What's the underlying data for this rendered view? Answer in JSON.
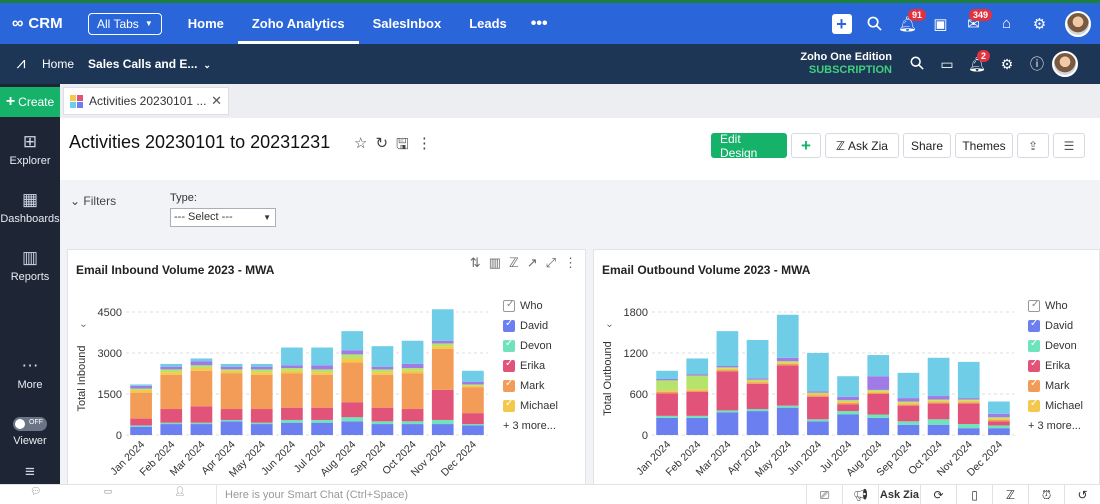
{
  "crm_bar": {
    "logo": "CRM",
    "all_tabs": "All Tabs",
    "tabs": [
      {
        "label": "Home",
        "active": false
      },
      {
        "label": "Zoho Analytics",
        "active": true
      },
      {
        "label": "SalesInbox",
        "active": false
      },
      {
        "label": "Leads",
        "active": false
      }
    ],
    "more": "•••",
    "notification_count": "91",
    "mail_count": "349"
  },
  "analytics_bar": {
    "home": "Home",
    "breadcrumb": "Sales Calls and E...",
    "edition": "Zoho One Edition",
    "subscription": "SUBSCRIPTION",
    "alert_count": "2"
  },
  "rail": {
    "create": "Create",
    "items": [
      "Explorer",
      "Dashboards",
      "Reports",
      "More",
      "Viewer"
    ],
    "toggle_state": "OFF"
  },
  "doc_tab": {
    "label": "Activities 20230101 ..."
  },
  "page": {
    "title": "Activities 20230101 to 20231231",
    "actions": {
      "edit_design": "Edit Design",
      "ask_zia": "Ask Zia",
      "share": "Share",
      "themes": "Themes"
    }
  },
  "filters": {
    "label": "Filters",
    "type_label": "Type:",
    "type_value": "--- Select ---"
  },
  "legend": {
    "who": "Who",
    "entries": [
      {
        "name": "David",
        "color": "#6b7ff0"
      },
      {
        "name": "Devon",
        "color": "#6fe3bb"
      },
      {
        "name": "Erika",
        "color": "#e2537a"
      },
      {
        "name": "Mark",
        "color": "#f29c58"
      },
      {
        "name": "Michael",
        "color": "#f2c94c"
      }
    ],
    "more": "+ 3 more..."
  },
  "segment_colors": [
    "#6b7ff0",
    "#6fe3bb",
    "#e2537a",
    "#f29c58",
    "#f2c94c",
    "#b6e36b",
    "#a07ae6",
    "#6fcde8"
  ],
  "chart_data": [
    {
      "type": "bar",
      "stacked": true,
      "title": "Email Inbound Volume 2023 - MWA",
      "xlabel": "",
      "ylabel": "Total Inbound",
      "ylim": [
        0,
        4500
      ],
      "yticks": [
        "0",
        "1500",
        "3000",
        "4500"
      ],
      "ytick_values": [
        0,
        1500,
        3000,
        4500
      ],
      "grid": true,
      "legend": "right",
      "categories": [
        "Jan 2024",
        "Feb 2024",
        "Mar 2024",
        "Apr 2024",
        "May 2024",
        "Jun 2024",
        "Jul 2024",
        "Aug 2024",
        "Sep 2024",
        "Oct 2024",
        "Nov 2024",
        "Dec 2024"
      ],
      "series": [
        {
          "name": "David",
          "values": [
            300,
            400,
            400,
            500,
            400,
            450,
            450,
            500,
            400,
            400,
            400,
            350
          ]
        },
        {
          "name": "Devon",
          "values": [
            50,
            50,
            50,
            50,
            50,
            100,
            100,
            150,
            100,
            100,
            150,
            50
          ]
        },
        {
          "name": "Erika",
          "values": [
            250,
            500,
            600,
            400,
            500,
            450,
            450,
            550,
            500,
            450,
            1100,
            400
          ]
        },
        {
          "name": "Mark",
          "values": [
            950,
            1250,
            1300,
            1300,
            1250,
            1250,
            1200,
            1450,
            1200,
            1300,
            1500,
            950
          ]
        },
        {
          "name": "Michael",
          "values": [
            100,
            100,
            100,
            100,
            100,
            100,
            100,
            150,
            100,
            100,
            100,
            50
          ]
        },
        {
          "name": "",
          "values": [
            50,
            100,
            100,
            50,
            100,
            100,
            100,
            150,
            100,
            100,
            100,
            50
          ]
        },
        {
          "name": "",
          "values": [
            100,
            100,
            150,
            100,
            100,
            100,
            150,
            150,
            100,
            150,
            100,
            100
          ]
        },
        {
          "name": "",
          "values": [
            50,
            100,
            100,
            100,
            100,
            650,
            650,
            700,
            750,
            850,
            1150,
            400
          ]
        }
      ]
    },
    {
      "type": "bar",
      "stacked": true,
      "title": "Email Outbound Volume 2023 - MWA",
      "xlabel": "",
      "ylabel": "Total Outbound",
      "ylim": [
        0,
        1800
      ],
      "yticks": [
        "0",
        "600",
        "1200",
        "1800"
      ],
      "ytick_values": [
        0,
        600,
        1200,
        1800
      ],
      "grid": true,
      "legend": "right",
      "categories": [
        "Jan 2024",
        "Feb 2024",
        "Mar 2024",
        "Apr 2024",
        "May 2024",
        "Jun 2024",
        "Jul 2024",
        "Aug 2024",
        "Sep 2024",
        "Oct 2024",
        "Nov 2024",
        "Dec 2024"
      ],
      "series": [
        {
          "name": "David",
          "values": [
            250,
            250,
            330,
            350,
            400,
            200,
            300,
            250,
            150,
            150,
            100,
            100
          ]
        },
        {
          "name": "Devon",
          "values": [
            30,
            30,
            30,
            30,
            30,
            30,
            50,
            50,
            50,
            80,
            60,
            40
          ]
        },
        {
          "name": "Erika",
          "values": [
            330,
            350,
            570,
            370,
            590,
            330,
            100,
            300,
            230,
            230,
            300,
            60
          ]
        },
        {
          "name": "Mark",
          "values": [
            20,
            20,
            20,
            20,
            20,
            20,
            20,
            20,
            20,
            20,
            20,
            20
          ]
        },
        {
          "name": "Michael",
          "values": [
            20,
            20,
            20,
            20,
            20,
            20,
            20,
            20,
            20,
            20,
            20,
            20
          ]
        },
        {
          "name": "",
          "values": [
            150,
            200,
            20,
            20,
            20,
            20,
            20,
            20,
            20,
            20,
            20,
            20
          ]
        },
        {
          "name": "",
          "values": [
            20,
            20,
            20,
            20,
            50,
            20,
            50,
            200,
            50,
            50,
            20,
            50
          ]
        },
        {
          "name": "",
          "values": [
            120,
            230,
            510,
            560,
            630,
            560,
            300,
            310,
            370,
            560,
            530,
            180
          ]
        }
      ]
    }
  ]
}
